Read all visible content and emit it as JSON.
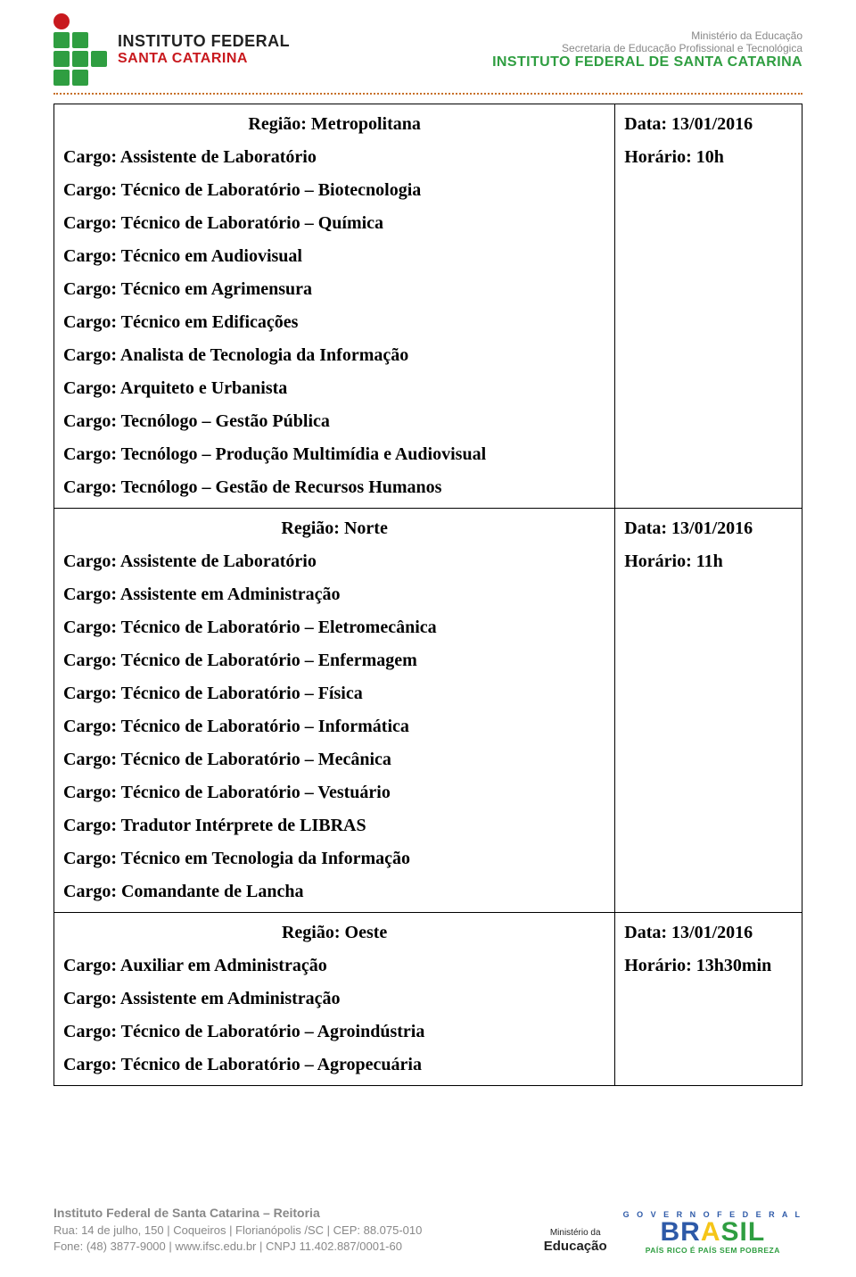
{
  "header": {
    "logo_line1": "INSTITUTO FEDERAL",
    "logo_line2": "SANTA CATARINA",
    "ministry_line1": "Ministério da Educação",
    "ministry_line2": "Secretaria de Educação Profissional e Tecnológica",
    "institute_line": "INSTITUTO FEDERAL DE SANTA CATARINA"
  },
  "table": {
    "row1": {
      "region": "Região: Metropolitana",
      "cargos": [
        "Cargo: Assistente de Laboratório",
        "Cargo: Técnico de Laboratório – Biotecnologia",
        "Cargo: Técnico de Laboratório – Química",
        "Cargo: Técnico em Audiovisual",
        "Cargo: Técnico em Agrimensura",
        "Cargo: Técnico em Edificações",
        "Cargo: Analista de Tecnologia da Informação",
        "Cargo: Arquiteto e Urbanista",
        "Cargo: Tecnólogo – Gestão Pública",
        "Cargo: Tecnólogo – Produção Multimídia e Audiovisual",
        "Cargo: Tecnólogo – Gestão de Recursos Humanos"
      ],
      "date": "Data: 13/01/2016",
      "time": "Horário: 10h"
    },
    "row2": {
      "region": "Região: Norte",
      "cargos": [
        "Cargo: Assistente de Laboratório",
        "Cargo: Assistente em Administração",
        "Cargo: Técnico de Laboratório – Eletromecânica",
        "Cargo: Técnico de Laboratório – Enfermagem",
        "Cargo: Técnico de Laboratório – Física",
        "Cargo: Técnico de Laboratório – Informática",
        "Cargo: Técnico de Laboratório – Mecânica",
        "Cargo: Técnico de Laboratório – Vestuário",
        "Cargo: Tradutor Intérprete de LIBRAS",
        "Cargo: Técnico em Tecnologia da Informação",
        "Cargo: Comandante de Lancha"
      ],
      "date": "Data: 13/01/2016",
      "time": "Horário: 11h"
    },
    "row3": {
      "region": "Região: Oeste",
      "cargos": [
        "Cargo: Auxiliar em Administração",
        "Cargo: Assistente em Administração",
        "Cargo: Técnico de Laboratório – Agroindústria",
        "Cargo: Técnico de Laboratório – Agropecuária"
      ],
      "date": "Data: 13/01/2016",
      "time": "Horário: 13h30min"
    }
  },
  "footer": {
    "title": "Instituto Federal de Santa Catarina – Reitoria",
    "addr": "Rua: 14 de julho, 150  |  Coqueiros  |  Florianópolis /SC  |  CEP: 88.075-010",
    "contact": "Fone: (48) 3877-9000  |  www.ifsc.edu.br  |  CNPJ 11.402.887/0001-60",
    "min_small": "Ministério da",
    "min_big": "Educação",
    "brasil_top": "G O V E R N O   F E D E R A L",
    "brasil_bottom": "PAÍS RICO É PAÍS SEM POBREZA"
  }
}
